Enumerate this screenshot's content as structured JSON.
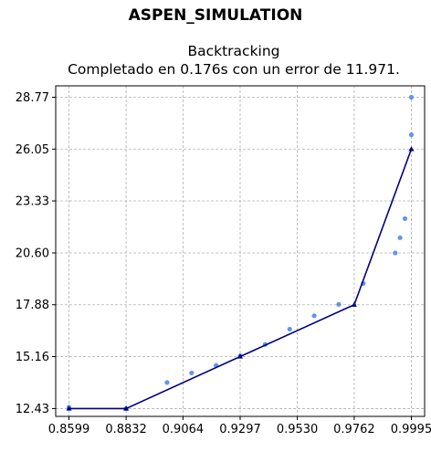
{
  "figure": {
    "suptitle": "ASPEN_SIMULATION",
    "title_line1": "Backtracking",
    "title_line2": "Completado en 0.176s con un error de 11.971."
  },
  "chart_data": {
    "type": "line",
    "grid": true,
    "xlim": [
      0.8545,
      1.0049
    ],
    "ylim": [
      12.02,
      29.37
    ],
    "x_ticks": [
      0.8599,
      0.8832,
      0.9064,
      0.9297,
      0.953,
      0.9762,
      0.9995
    ],
    "x_tick_labels": [
      "0.8599",
      "0.8832",
      "0.9064",
      "0.9297",
      "0.9530",
      "0.9762",
      "0.9995"
    ],
    "y_ticks": [
      12.43,
      15.16,
      17.88,
      20.6,
      23.33,
      26.05,
      28.77
    ],
    "y_tick_labels": [
      "12.43",
      "15.16",
      "17.88",
      "20.60",
      "23.33",
      "26.05",
      "28.77"
    ],
    "series": [
      {
        "style": "scatter",
        "color": "#6495ed",
        "x": [
          0.8599,
          0.8832,
          0.8999,
          0.9099,
          0.9199,
          0.9297,
          0.9399,
          0.9499,
          0.9599,
          0.9699,
          0.9799,
          0.9929,
          0.9949,
          0.9969,
          0.9995,
          0.9995
        ],
        "y": [
          12.5,
          12.43,
          13.8,
          14.3,
          14.7,
          15.2,
          15.8,
          16.6,
          17.3,
          17.9,
          19.0,
          20.6,
          21.4,
          22.4,
          26.8,
          28.77
        ]
      },
      {
        "style": "line",
        "color": "#000080",
        "marker": "^",
        "x": [
          0.8599,
          0.8832,
          0.9297,
          0.9762,
          0.9995
        ],
        "y": [
          12.43,
          12.43,
          15.16,
          17.88,
          26.05
        ]
      }
    ]
  }
}
